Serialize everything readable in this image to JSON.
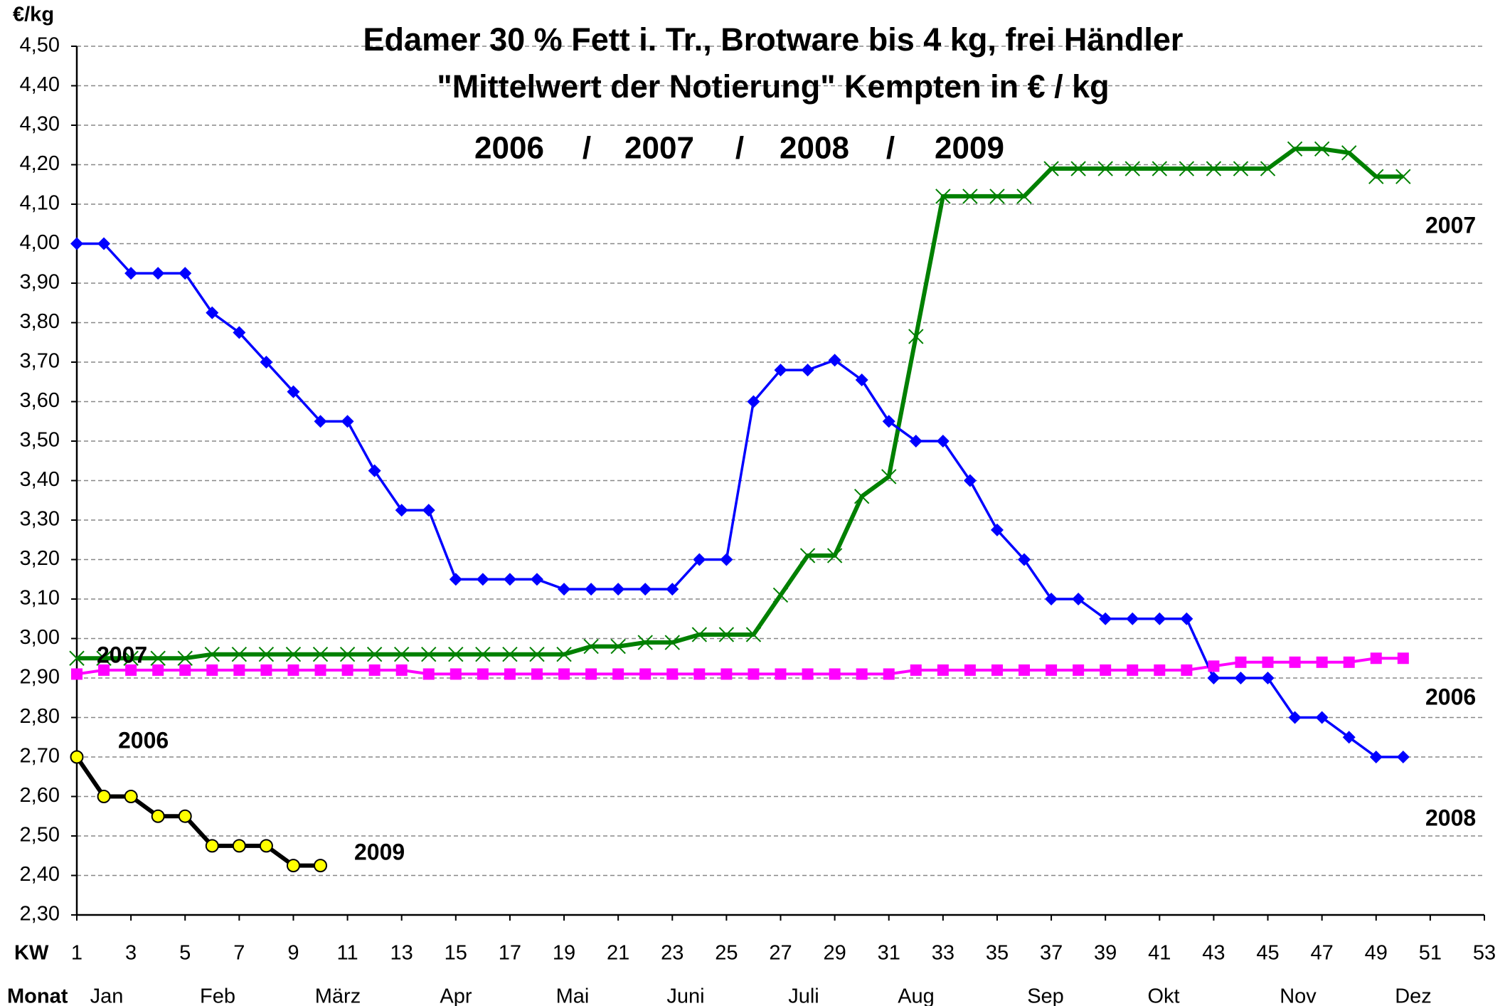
{
  "chart_data": {
    "type": "line",
    "title": "Edamer 30 % Fett i. Tr., Brotware bis 4 kg, frei Händler",
    "subtitle": "\"Mittelwert der Notierung\" Kempten in € / kg",
    "y_label": "€/kg",
    "x_label": "KW",
    "month_axis_label": "Monat",
    "months": [
      "Jan",
      "Feb",
      "März",
      "Apr",
      "Mai",
      "Juni",
      "Juli",
      "Aug",
      "Sep",
      "Okt",
      "Nov",
      "Dez"
    ],
    "legend_separator": "/",
    "grid": true,
    "x": [
      1,
      2,
      3,
      4,
      5,
      6,
      7,
      8,
      9,
      10,
      11,
      12,
      13,
      14,
      15,
      16,
      17,
      18,
      19,
      20,
      21,
      22,
      23,
      24,
      25,
      26,
      27,
      28,
      29,
      30,
      31,
      32,
      33,
      34,
      35,
      36,
      37,
      38,
      39,
      40,
      41,
      42,
      43,
      44,
      45,
      46,
      47,
      48,
      49,
      50
    ],
    "xlim": [
      1,
      53
    ],
    "xticks": [
      1,
      3,
      5,
      7,
      9,
      11,
      13,
      15,
      17,
      19,
      21,
      23,
      25,
      27,
      29,
      31,
      33,
      35,
      37,
      39,
      41,
      43,
      45,
      47,
      49,
      51,
      53
    ],
    "ylim": [
      2.3,
      4.5
    ],
    "yticks": [
      {
        "value": 2.3,
        "label": "2,30"
      },
      {
        "value": 2.4,
        "label": "2,40"
      },
      {
        "value": 2.5,
        "label": "2,50"
      },
      {
        "value": 2.6,
        "label": "2,60"
      },
      {
        "value": 2.7,
        "label": "2,70"
      },
      {
        "value": 2.8,
        "label": "2,80"
      },
      {
        "value": 2.9,
        "label": "2,90"
      },
      {
        "value": 3.0,
        "label": "3,00"
      },
      {
        "value": 3.1,
        "label": "3,10"
      },
      {
        "value": 3.2,
        "label": "3,20"
      },
      {
        "value": 3.3,
        "label": "3,30"
      },
      {
        "value": 3.4,
        "label": "3,40"
      },
      {
        "value": 3.5,
        "label": "3,50"
      },
      {
        "value": 3.6,
        "label": "3,60"
      },
      {
        "value": 3.7,
        "label": "3,70"
      },
      {
        "value": 3.8,
        "label": "3,80"
      },
      {
        "value": 3.9,
        "label": "3,90"
      },
      {
        "value": 4.0,
        "label": "4,00"
      },
      {
        "value": 4.1,
        "label": "4,10"
      },
      {
        "value": 4.2,
        "label": "4,20"
      },
      {
        "value": 4.3,
        "label": "4,30"
      },
      {
        "value": 4.4,
        "label": "4,40"
      },
      {
        "value": 4.5,
        "label": "4,50"
      }
    ],
    "series": [
      {
        "name": "2006",
        "color": "#ff00ff",
        "marker": "square",
        "values": [
          2.91,
          2.92,
          2.92,
          2.92,
          2.92,
          2.92,
          2.92,
          2.92,
          2.92,
          2.92,
          2.92,
          2.92,
          2.92,
          2.91,
          2.91,
          2.91,
          2.91,
          2.91,
          2.91,
          2.91,
          2.91,
          2.91,
          2.91,
          2.91,
          2.91,
          2.91,
          2.91,
          2.91,
          2.91,
          2.91,
          2.91,
          2.92,
          2.92,
          2.92,
          2.92,
          2.92,
          2.92,
          2.92,
          2.92,
          2.92,
          2.92,
          2.92,
          2.93,
          2.94,
          2.94,
          2.94,
          2.94,
          2.94,
          2.95,
          2.95
        ]
      },
      {
        "name": "2007",
        "color": "#008000",
        "marker": "x",
        "values": [
          2.95,
          2.95,
          2.95,
          2.95,
          2.95,
          2.96,
          2.96,
          2.96,
          2.96,
          2.96,
          2.96,
          2.96,
          2.96,
          2.96,
          2.96,
          2.96,
          2.96,
          2.96,
          2.96,
          2.98,
          2.98,
          2.99,
          2.99,
          3.01,
          3.01,
          3.01,
          3.11,
          3.21,
          3.21,
          3.36,
          3.41,
          3.765,
          4.12,
          4.12,
          4.12,
          4.12,
          4.19,
          4.19,
          4.19,
          4.19,
          4.19,
          4.19,
          4.19,
          4.19,
          4.19,
          4.24,
          4.24,
          4.23,
          4.17,
          4.17
        ]
      },
      {
        "name": "2008",
        "color": "#0000ff",
        "marker": "diamond",
        "values": [
          4.0,
          4.0,
          3.925,
          3.925,
          3.925,
          3.825,
          3.775,
          3.7,
          3.625,
          3.55,
          3.55,
          3.425,
          3.325,
          3.325,
          3.15,
          3.15,
          3.15,
          3.15,
          3.125,
          3.125,
          3.125,
          3.125,
          3.125,
          3.2,
          3.2,
          3.6,
          3.68,
          3.68,
          3.705,
          3.655,
          3.55,
          3.5,
          3.5,
          3.4,
          3.275,
          3.2,
          3.1,
          3.1,
          3.05,
          3.05,
          3.05,
          3.05,
          2.9,
          2.9,
          2.9,
          2.8,
          2.8,
          2.75,
          2.7,
          2.7
        ]
      },
      {
        "name": "2009",
        "color": "#000000",
        "marker": "circle",
        "values": [
          2.7,
          2.6,
          2.6,
          2.55,
          2.55,
          2.475,
          2.475,
          2.475,
          2.425,
          2.425,
          null,
          null,
          null,
          null,
          null,
          null,
          null,
          null,
          null,
          null,
          null,
          null,
          null,
          null,
          null,
          null,
          null,
          null,
          null,
          null,
          null,
          null,
          null,
          null,
          null,
          null,
          null,
          null,
          null,
          null,
          null,
          null,
          null,
          null,
          null,
          null,
          null,
          null,
          null,
          null
        ]
      }
    ],
    "annotations": [
      {
        "text": "2007",
        "color": "#008000"
      },
      {
        "text": "2006",
        "color": "#ff00ff"
      },
      {
        "text": "2009",
        "color": "#000000"
      },
      {
        "text": "2007",
        "color": "#008000"
      },
      {
        "text": "2006",
        "color": "#ff00ff"
      },
      {
        "text": "2008",
        "color": "#0000ff"
      }
    ]
  }
}
